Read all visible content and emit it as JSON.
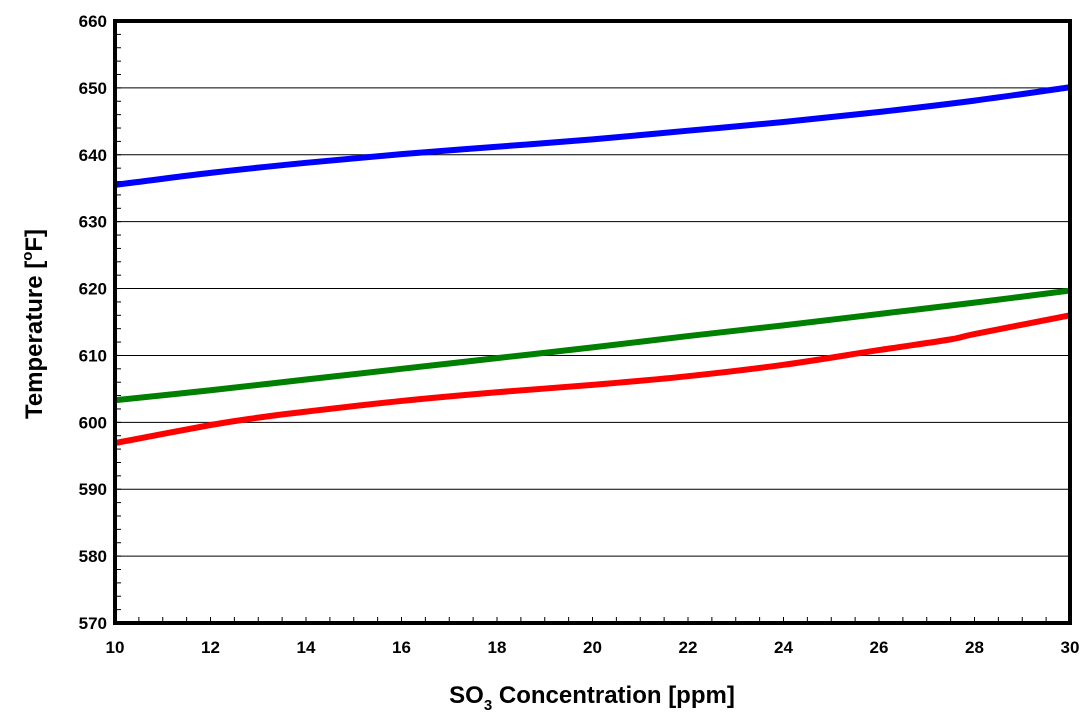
{
  "chart_data": {
    "type": "line",
    "title": "",
    "xlabel": {
      "main": "SO",
      "subscript": "3",
      "rest": " Concentration [ppm]"
    },
    "ylabel": {
      "main": "Temperature [",
      "superscript": "o",
      "rest": "F]"
    },
    "xlim": [
      10,
      30
    ],
    "ylim": [
      570,
      660
    ],
    "x_ticks": [
      10,
      12,
      14,
      16,
      18,
      20,
      22,
      24,
      26,
      28,
      30
    ],
    "y_ticks": [
      570,
      580,
      590,
      600,
      610,
      620,
      630,
      640,
      650,
      660
    ],
    "grid": {
      "horizontal": true,
      "vertical": false
    },
    "series": [
      {
        "color": "#0000ff",
        "x": [
          10,
          12,
          14,
          16,
          18,
          20,
          22,
          24,
          26,
          28,
          30
        ],
        "y": [
          635.5,
          637.3,
          638.8,
          640.1,
          641.2,
          642.3,
          643.6,
          644.9,
          646.4,
          648.1,
          650.1
        ]
      },
      {
        "color": "#008000",
        "x": [
          10,
          12,
          14,
          16,
          18,
          20,
          22,
          24,
          26,
          28,
          30
        ],
        "y": [
          603.3,
          604.8,
          606.4,
          608.0,
          609.6,
          611.2,
          612.9,
          614.5,
          616.2,
          617.9,
          619.7
        ]
      },
      {
        "color": "#ff0000",
        "x": [
          10,
          12,
          13,
          14,
          16,
          18,
          20,
          22,
          24,
          26,
          27.5,
          28,
          30
        ],
        "y": [
          596.9,
          599.6,
          600.7,
          601.6,
          603.2,
          604.5,
          605.6,
          606.9,
          608.6,
          610.8,
          612.4,
          613.2,
          616.0
        ]
      }
    ]
  }
}
